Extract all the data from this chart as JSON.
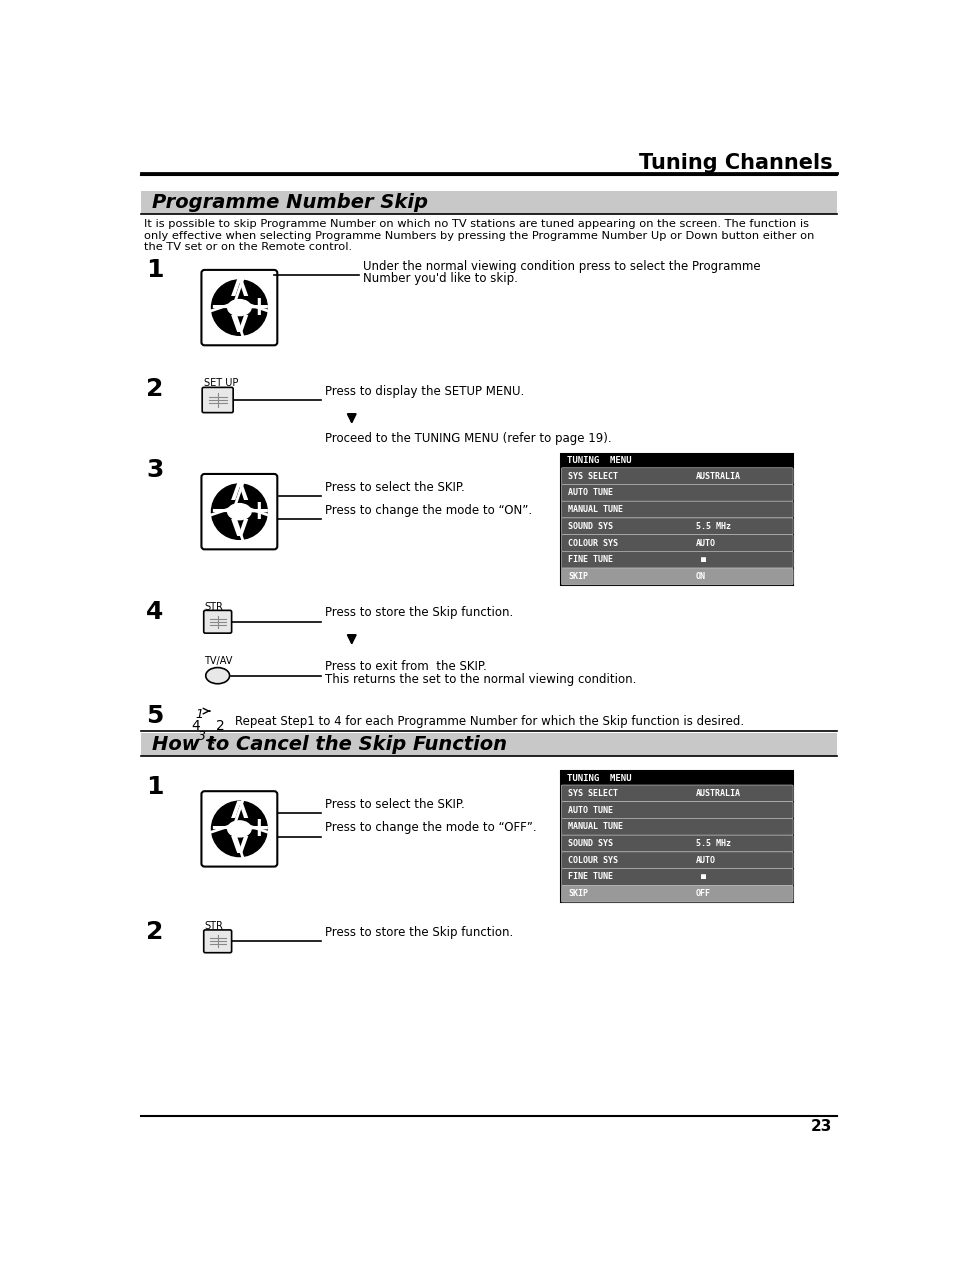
{
  "title_top": "Tuning Channels",
  "section1_title": "Programme Number Skip",
  "section2_title": "How to Cancel the Skip Function",
  "intro_line1": "It is possible to skip Programme Number on which no TV stations are tuned appearing on the screen. The function is",
  "intro_line2": "only effective when selecting Programme Numbers by pressing the Programme Number Up or Down button either on",
  "intro_line3": "the TV set or on the Remote control.",
  "bg_color": "#ffffff",
  "page_number": "23"
}
